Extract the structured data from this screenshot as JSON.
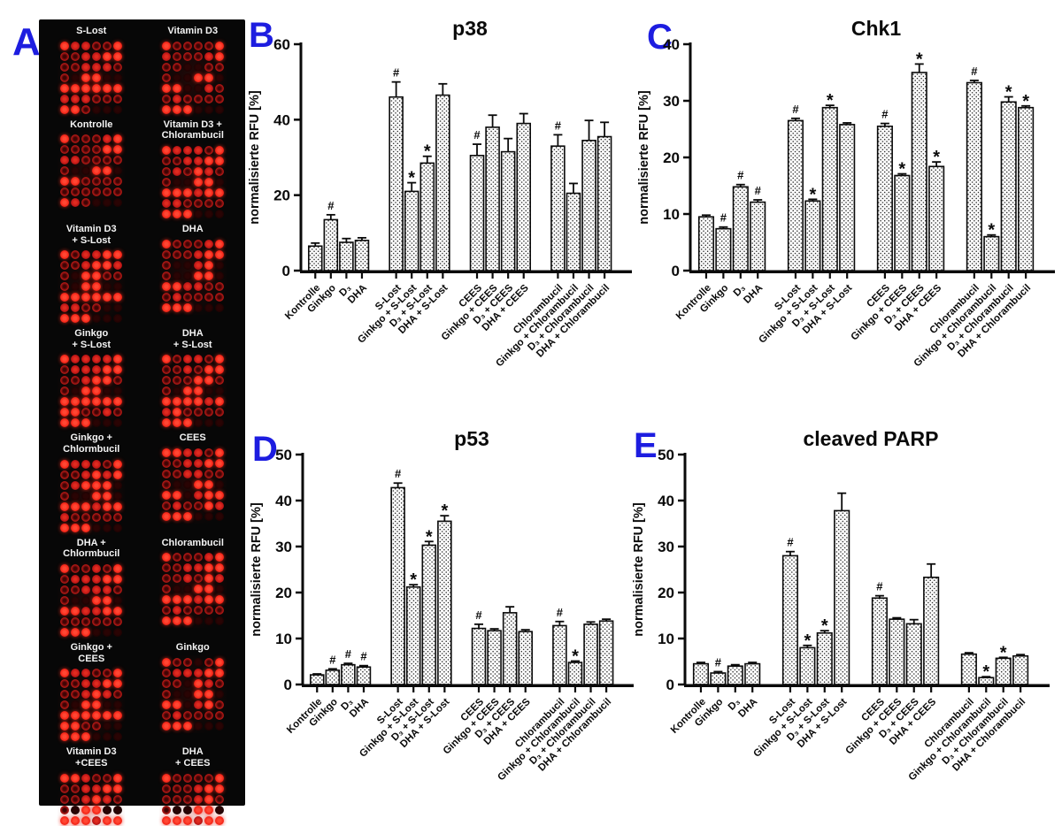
{
  "panel_a": {
    "letter": "A",
    "blots": [
      {
        "label": "S-Lost",
        "pattern": [
          "322113",
          "112233",
          "112221",
          "103300",
          "333333",
          "222111",
          "331000"
        ]
      },
      {
        "label": "Vitamin D3",
        "pattern": [
          "311113",
          "211123",
          "110011",
          "100330",
          "330021",
          "121111",
          "333000"
        ]
      },
      {
        "label": "Kontrolle",
        "pattern": [
          "311123",
          "111133",
          "221111",
          "100330",
          "331111",
          "111111",
          "321000"
        ]
      },
      {
        "label": "Vitamin D3 +\nChlorambucil",
        "pattern": [
          "322213",
          "112233",
          "121321",
          "100330",
          "333233",
          "221111",
          "333000"
        ]
      },
      {
        "label": "Vitamin D3\n+ S-Lost",
        "pattern": [
          "312233",
          "112332",
          "103311",
          "103300",
          "333333",
          "221100",
          "333000"
        ]
      },
      {
        "label": "DHA",
        "pattern": [
          "311123",
          "111233",
          "100230",
          "100330",
          "332211",
          "121111",
          "333000"
        ]
      },
      {
        "label": "Ginkgo\n+ S-Lost",
        "pattern": [
          "322223",
          "122233",
          "112331",
          "103300",
          "333333",
          "331121",
          "333000"
        ]
      },
      {
        "label": "DHA\n+ S-Lost",
        "pattern": [
          "312213",
          "112133",
          "111331",
          "103300",
          "333323",
          "231111",
          "333000"
        ]
      },
      {
        "label": "Ginkgo +\nChlormbucil",
        "pattern": [
          "322213",
          "112323",
          "123330",
          "100330",
          "333233",
          "211111",
          "333000"
        ]
      },
      {
        "label": "CEES",
        "pattern": [
          "332213",
          "112233",
          "112211",
          "100330",
          "330233",
          "121132",
          "333000"
        ]
      },
      {
        "label": "DHA +\nChlormbucil",
        "pattern": [
          "311213",
          "122233",
          "112221",
          "100330",
          "332233",
          "111111",
          "333000"
        ]
      },
      {
        "label": "Chlorambucil",
        "pattern": [
          "311123",
          "112233",
          "112132",
          "100330",
          "333233",
          "121111",
          "333000"
        ]
      },
      {
        "label": "Ginkgo +\nCEES",
        "pattern": [
          "322113",
          "112233",
          "112321",
          "103300",
          "333333",
          "331100",
          "333000"
        ]
      },
      {
        "label": "Ginkgo",
        "pattern": [
          "311013",
          "122233",
          "110321",
          "100330",
          "330231",
          "121111",
          "333000"
        ]
      },
      {
        "label": "Vitamin D3\n+CEES",
        "pattern": [
          "332113",
          "112233",
          "112321",
          "103300",
          "333233",
          "331100",
          "333000"
        ]
      },
      {
        "label": "DHA\n+ CEES",
        "pattern": [
          "311113",
          "111233",
          "111231",
          "100330",
          "333233",
          "121111",
          "333000"
        ]
      }
    ]
  },
  "chart_data": [
    {
      "panel": "B",
      "type": "bar",
      "title": "p38",
      "ylabel": "normalisierte RFU [%]",
      "ylim": [
        0,
        60
      ],
      "yticks": [
        0,
        20,
        40,
        60
      ],
      "grid": false,
      "categories": [
        "Kontrolle",
        "Ginkgo",
        "D₃",
        "DHA",
        "S-Lost",
        "Ginkgo + S-Lost",
        "D₃ + S-Lost",
        "DHA + S-Lost",
        "CEES",
        "Ginkgo + CEES",
        "D₃ + CEES",
        "DHA + CEES",
        "Chlorambucil",
        "Ginkgo + Chlorambucil",
        "D₃ + Chlorambucil",
        "DHA + Chlorambucil"
      ],
      "values": [
        6.5,
        13.5,
        7.5,
        8.0,
        46.0,
        21.0,
        28.5,
        46.5,
        30.5,
        38.0,
        31.5,
        39.0,
        33.0,
        20.5,
        34.5,
        35.5
      ],
      "errors": [
        0.8,
        1.3,
        1.0,
        0.7,
        4.0,
        2.3,
        1.8,
        3.0,
        3.0,
        3.2,
        3.5,
        2.6,
        3.0,
        2.6,
        5.3,
        3.8
      ],
      "sig_markers": [
        "",
        "#",
        "",
        "",
        "#",
        "*",
        "*",
        "",
        "#",
        "",
        "",
        "",
        "#",
        "",
        "",
        ""
      ]
    },
    {
      "panel": "C",
      "type": "bar",
      "title": "Chk1",
      "ylabel": "normalisierte RFU [%]",
      "ylim": [
        0,
        40
      ],
      "yticks": [
        0,
        10,
        20,
        30,
        40
      ],
      "grid": false,
      "categories": [
        "Kontrolle",
        "Ginkgo",
        "D₃",
        "DHA",
        "S-Lost",
        "Ginkgo + S-Lost",
        "D₃ + S-Lost",
        "DHA + S-Lost",
        "CEES",
        "Ginkgo + CEES",
        "D₃ + CEES",
        "DHA + CEES",
        "Chlorambucil",
        "Ginkgo + Chlorambucil",
        "D₃ + Chlorambucil",
        "DHA + Chlorambucil"
      ],
      "values": [
        9.5,
        7.4,
        14.8,
        12.1,
        26.5,
        12.3,
        28.8,
        25.8,
        25.5,
        16.8,
        35.0,
        18.4,
        33.2,
        6.0,
        29.8,
        28.8
      ],
      "errors": [
        0.3,
        0.3,
        0.4,
        0.4,
        0.4,
        0.3,
        0.4,
        0.3,
        0.5,
        0.3,
        1.5,
        0.8,
        0.4,
        0.3,
        0.9,
        0.3
      ],
      "sig_markers": [
        "",
        "#",
        "#",
        "#",
        "#",
        "*",
        "*",
        "",
        "#",
        "*",
        "*",
        "*",
        "#",
        "*",
        "*",
        "*"
      ]
    },
    {
      "panel": "D",
      "type": "bar",
      "title": "p53",
      "ylabel": "normalisierte RFU [%]",
      "ylim": [
        0,
        50
      ],
      "yticks": [
        0,
        10,
        20,
        30,
        40,
        50
      ],
      "grid": false,
      "categories": [
        "Kontrolle",
        "Ginkgo",
        "D₃",
        "DHA",
        "S-Lost",
        "Ginkgo + S-Lost",
        "D₃ + S-Lost",
        "DHA + S-Lost",
        "CEES",
        "Ginkgo + CEES",
        "D₃ + CEES",
        "DHA + CEES",
        "Chlorambucil",
        "Ginkgo + Chlorambucil",
        "D₃ + Chlorambucil",
        "DHA + Chlorambucil"
      ],
      "values": [
        2.1,
        3.1,
        4.3,
        3.8,
        42.8,
        21.2,
        30.3,
        35.5,
        12.2,
        11.7,
        15.6,
        11.5,
        12.8,
        4.8,
        13.1,
        13.8
      ],
      "errors": [
        0.2,
        0.3,
        0.3,
        0.3,
        1.0,
        0.5,
        0.8,
        1.2,
        0.9,
        0.4,
        1.3,
        0.4,
        0.9,
        0.3,
        0.5,
        0.4
      ],
      "sig_markers": [
        "",
        "#",
        "#",
        "#",
        "#",
        "*",
        "*",
        "*",
        "#",
        "",
        "",
        "",
        "#",
        "*",
        "",
        ""
      ]
    },
    {
      "panel": "E",
      "type": "bar",
      "title": "cleaved PARP",
      "ylabel": "normalisierte RFU [%]",
      "ylim": [
        0,
        50
      ],
      "yticks": [
        0,
        10,
        20,
        30,
        40,
        50
      ],
      "grid": false,
      "categories": [
        "Kontrolle",
        "Ginkgo",
        "D₃",
        "DHA",
        "S-Lost",
        "Ginkgo + S-Lost",
        "D₃ + S-Lost",
        "DHA + S-Lost",
        "CEES",
        "Ginkgo + CEES",
        "D₃ + CEES",
        "DHA + CEES",
        "Chlorambucil",
        "Ginkgo + Chlorambucil",
        "D₃ + Chlorambucil",
        "DHA + Chlorambucil"
      ],
      "values": [
        4.5,
        2.5,
        4.0,
        4.5,
        28.0,
        8.0,
        11.2,
        37.8,
        18.8,
        14.2,
        13.2,
        23.3,
        6.6,
        1.5,
        5.7,
        6.2
      ],
      "errors": [
        0.3,
        0.3,
        0.3,
        0.3,
        0.9,
        0.5,
        0.5,
        3.8,
        0.5,
        0.3,
        0.9,
        2.9,
        0.3,
        0.2,
        0.2,
        0.3
      ],
      "sig_markers": [
        "",
        "#",
        "",
        "",
        "#",
        "*",
        "*",
        "",
        "#",
        "",
        "",
        "",
        "",
        "*",
        "*",
        ""
      ]
    }
  ]
}
